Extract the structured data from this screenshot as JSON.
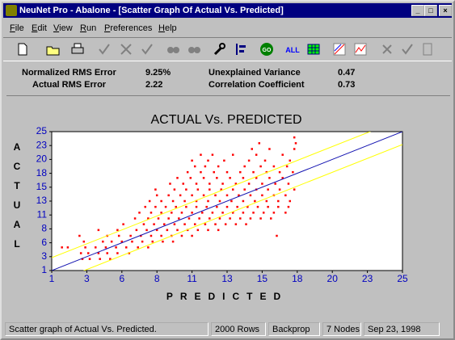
{
  "window_title": "NeuNet Pro - Abalone - [Scatter Graph Of Actual Vs. Predicted]",
  "menu": [
    "File",
    "Edit",
    "View",
    "Run",
    "Preferences",
    "Help"
  ],
  "toolbar": {
    "go_button": "GO",
    "all_button": "ALL"
  },
  "stats": [
    {
      "label": "Normalized RMS Error",
      "value": "9.25%"
    },
    {
      "label": "Actual RMS Error",
      "value": "2.22"
    },
    {
      "label": "Unexplained Variance",
      "value": "0.47"
    },
    {
      "label": "Correlation Coefficient",
      "value": "0.73"
    }
  ],
  "chart_data": {
    "type": "scatter",
    "title": "ACTUAL Vs. PREDICTED",
    "x_label": "PREDICTED",
    "y_label": "ACTUAL",
    "xlim": [
      1,
      25
    ],
    "ylim": [
      1,
      25
    ],
    "xticks": [
      1,
      {
        "value": 3.4,
        "label": "3"
      },
      {
        "value": 5.8,
        "label": "6"
      },
      {
        "value": 8.2,
        "label": "8"
      },
      {
        "value": 10.6,
        "label": "11"
      },
      13,
      {
        "value": 15.4,
        "label": "15"
      },
      {
        "value": 17.8,
        "label": "18"
      },
      {
        "value": 20.2,
        "label": "20"
      },
      {
        "value": 22.6,
        "label": "23"
      },
      25
    ],
    "yticks": [
      1,
      {
        "value": 3.4,
        "label": "3"
      },
      {
        "value": 5.8,
        "label": "6"
      },
      {
        "value": 8.2,
        "label": "8"
      },
      {
        "value": 10.6,
        "label": "11"
      },
      13,
      {
        "value": 15.4,
        "label": "15"
      },
      {
        "value": 17.8,
        "label": "18"
      },
      {
        "value": 20.2,
        "label": "20"
      },
      {
        "value": 22.6,
        "label": "23"
      },
      25
    ],
    "color": "#ff0000",
    "x": [
      3.1,
      3.6,
      4.3,
      5.0,
      3.0,
      3.5,
      4.2,
      4.8,
      5.5,
      6.3,
      1.7,
      2.1,
      3.3,
      4.0,
      4.7,
      5.4,
      6.1,
      6.9,
      7.6,
      3.2,
      4.5,
      5.1,
      5.8,
      6.5,
      7.2,
      7.9,
      8.6,
      9.3,
      2.9,
      4.8,
      5.6,
      6.4,
      7.1,
      7.8,
      8.5,
      9.2,
      9.9,
      10.6,
      16.4,
      4.2,
      5.5,
      6.8,
      7.5,
      8.2,
      8.9,
      9.6,
      10.3,
      11.0,
      11.7,
      12.4,
      5.9,
      7.3,
      8.0,
      8.7,
      9.4,
      10.1,
      10.8,
      11.5,
      12.2,
      12.9,
      13.6,
      14.3,
      6.7,
      7.6,
      8.3,
      9.0,
      9.7,
      10.4,
      11.1,
      11.8,
      12.5,
      13.2,
      13.9,
      14.6,
      15.3,
      16.0,
      7.0,
      7.8,
      8.5,
      9.2,
      9.9,
      10.6,
      11.3,
      12.0,
      12.7,
      13.4,
      14.1,
      14.8,
      15.5,
      16.2,
      17.0,
      7.4,
      8.1,
      8.8,
      9.5,
      10.2,
      10.9,
      11.6,
      12.3,
      13.0,
      13.7,
      14.4,
      15.1,
      15.8,
      16.5,
      17.2,
      7.7,
      8.5,
      9.3,
      10.1,
      10.9,
      11.7,
      12.5,
      13.3,
      14.1,
      14.9,
      15.7,
      16.5,
      17.3,
      8.2,
      9.0,
      9.8,
      10.6,
      11.4,
      12.2,
      13.0,
      13.8,
      14.6,
      15.4,
      16.2,
      17.0,
      8.1,
      9.4,
      10.2,
      11.0,
      11.8,
      12.6,
      13.4,
      14.2,
      15.0,
      15.8,
      16.6,
      17.6,
      9.1,
      10.0,
      10.9,
      11.8,
      12.7,
      13.6,
      14.5,
      15.4,
      16.3,
      17.2,
      9.6,
      10.5,
      11.4,
      12.3,
      13.2,
      14.1,
      15.0,
      15.9,
      16.8,
      10.3,
      11.2,
      12.1,
      13.0,
      13.9,
      14.8,
      15.7,
      16.6,
      17.5,
      10.8,
      11.5,
      12.4,
      14.2,
      15.3,
      16.2,
      17.1,
      10.6,
      11.7,
      12.8,
      14.5,
      15.6,
      17.3,
      11.2,
      12.0,
      13.4,
      15.0,
      16.8,
      14.7,
      15.9,
      17.6,
      15.2,
      17.7,
      17.6
    ],
    "values": [
      3,
      3,
      3,
      3,
      4,
      4,
      4,
      4,
      4,
      4,
      5,
      5,
      5,
      5,
      5,
      5,
      5,
      5,
      5,
      6,
      6,
      6,
      6,
      6,
      6,
      6,
      6,
      6,
      7,
      7,
      7,
      7,
      7,
      7,
      7,
      7,
      7,
      7,
      7,
      8,
      8,
      8,
      8,
      8,
      8,
      8,
      8,
      8,
      8,
      8,
      9,
      9,
      9,
      9,
      9,
      9,
      9,
      9,
      9,
      9,
      9,
      9,
      10,
      10,
      10,
      10,
      10,
      10,
      10,
      10,
      10,
      10,
      10,
      10,
      10,
      10,
      11,
      11,
      11,
      11,
      11,
      11,
      11,
      11,
      11,
      11,
      11,
      11,
      11,
      11,
      11,
      12,
      12,
      12,
      12,
      12,
      12,
      12,
      12,
      12,
      12,
      12,
      12,
      12,
      12,
      12,
      13,
      13,
      13,
      13,
      13,
      13,
      13,
      13,
      13,
      13,
      13,
      13,
      13,
      14,
      14,
      14,
      14,
      14,
      14,
      14,
      14,
      14,
      14,
      14,
      14,
      15,
      15,
      15,
      15,
      15,
      15,
      15,
      15,
      15,
      15,
      15,
      15,
      16,
      16,
      16,
      16,
      16,
      16,
      16,
      16,
      16,
      16,
      17,
      17,
      17,
      17,
      17,
      17,
      17,
      17,
      17,
      18,
      18,
      18,
      18,
      18,
      18,
      18,
      18,
      18,
      19,
      19,
      19,
      19,
      19,
      19,
      19,
      20,
      20,
      20,
      20,
      20,
      20,
      21,
      21,
      21,
      21,
      21,
      22,
      22,
      22,
      23,
      23,
      24
    ],
    "reference_lines": [
      {
        "slope": 1,
        "intercept": 0,
        "color": "#1010b0"
      },
      {
        "slope": 1,
        "intercept": 2.22,
        "color": "#ffff00"
      },
      {
        "slope": 1,
        "intercept": -2.22,
        "color": "#ffff00"
      }
    ]
  },
  "status_bar": [
    "Scatter graph of Actual Vs. Predicted.",
    "2000 Rows",
    "Backprop",
    "7 Nodes",
    "Sep 23, 1998"
  ]
}
